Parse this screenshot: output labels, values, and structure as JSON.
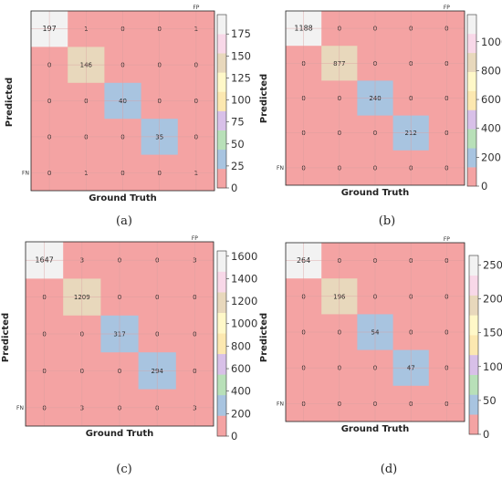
{
  "colors": {
    "background": "#f4a3a3",
    "scale": [
      "#f4a3a3",
      "#a8c4e0",
      "#b8e0b8",
      "#d8c0e8",
      "#fce8b0",
      "#fff8c8",
      "#e8d8bc",
      "#f8d8e8",
      "#f2f2f2"
    ],
    "grid": "#d9a0a0",
    "frame": "#222222"
  },
  "chart_data": [
    {
      "type": "heatmap",
      "caption": "(a)",
      "xlabel": "Ground Truth",
      "ylabel": "Predicted",
      "top_tag": "FP",
      "side_tag": "FN",
      "matrix": [
        [
          197,
          1,
          0,
          0,
          1
        ],
        [
          0,
          146,
          0,
          0,
          0
        ],
        [
          0,
          0,
          40,
          0,
          0
        ],
        [
          0,
          0,
          0,
          35,
          0
        ],
        [
          0,
          1,
          0,
          0,
          1
        ]
      ],
      "colorbar_range": [
        0,
        197
      ],
      "colorbar_ticks": [
        "0",
        "25",
        "50",
        "75",
        "100",
        "125",
        "150",
        "175"
      ],
      "colorbar_values": [
        0,
        25,
        50,
        75,
        100,
        125,
        150,
        175
      ]
    },
    {
      "type": "heatmap",
      "caption": "(b)",
      "xlabel": "Ground Truth",
      "ylabel": "Predicted",
      "top_tag": "FP",
      "side_tag": "FN",
      "matrix": [
        [
          1188,
          0,
          0,
          0,
          0
        ],
        [
          0,
          877,
          0,
          0,
          0
        ],
        [
          0,
          0,
          240,
          0,
          0
        ],
        [
          0,
          0,
          0,
          212,
          0
        ],
        [
          0,
          0,
          0,
          0,
          0
        ]
      ],
      "colorbar_range": [
        0,
        1188
      ],
      "colorbar_ticks": [
        "0",
        "200",
        "400",
        "600",
        "800",
        "1000"
      ],
      "colorbar_values": [
        0,
        200,
        400,
        600,
        800,
        1000
      ]
    },
    {
      "type": "heatmap",
      "caption": "(c)",
      "xlabel": "Ground Truth",
      "ylabel": "Predicted",
      "top_tag": "FP",
      "side_tag": "FN",
      "matrix": [
        [
          1647,
          3,
          0,
          0,
          3
        ],
        [
          0,
          1209,
          0,
          0,
          0
        ],
        [
          0,
          0,
          317,
          0,
          0
        ],
        [
          0,
          0,
          0,
          294,
          0
        ],
        [
          0,
          3,
          0,
          0,
          3
        ]
      ],
      "colorbar_range": [
        0,
        1647
      ],
      "colorbar_ticks": [
        "0",
        "200",
        "400",
        "600",
        "800",
        "1000",
        "1200",
        "1400",
        "1600"
      ],
      "colorbar_values": [
        0,
        200,
        400,
        600,
        800,
        1000,
        1200,
        1400,
        1600
      ]
    },
    {
      "type": "heatmap",
      "caption": "(d)",
      "xlabel": "Ground Truth",
      "ylabel": "Predicted",
      "top_tag": "FP",
      "side_tag": "FN",
      "matrix": [
        [
          264,
          0,
          0,
          0,
          0
        ],
        [
          0,
          196,
          0,
          0,
          0
        ],
        [
          0,
          0,
          54,
          0,
          0
        ],
        [
          0,
          0,
          0,
          47,
          0
        ],
        [
          0,
          0,
          0,
          0,
          0
        ]
      ],
      "colorbar_range": [
        0,
        264
      ],
      "colorbar_ticks": [
        "0",
        "50",
        "100",
        "150",
        "200",
        "250"
      ],
      "colorbar_values": [
        0,
        50,
        100,
        150,
        200,
        250
      ]
    }
  ]
}
